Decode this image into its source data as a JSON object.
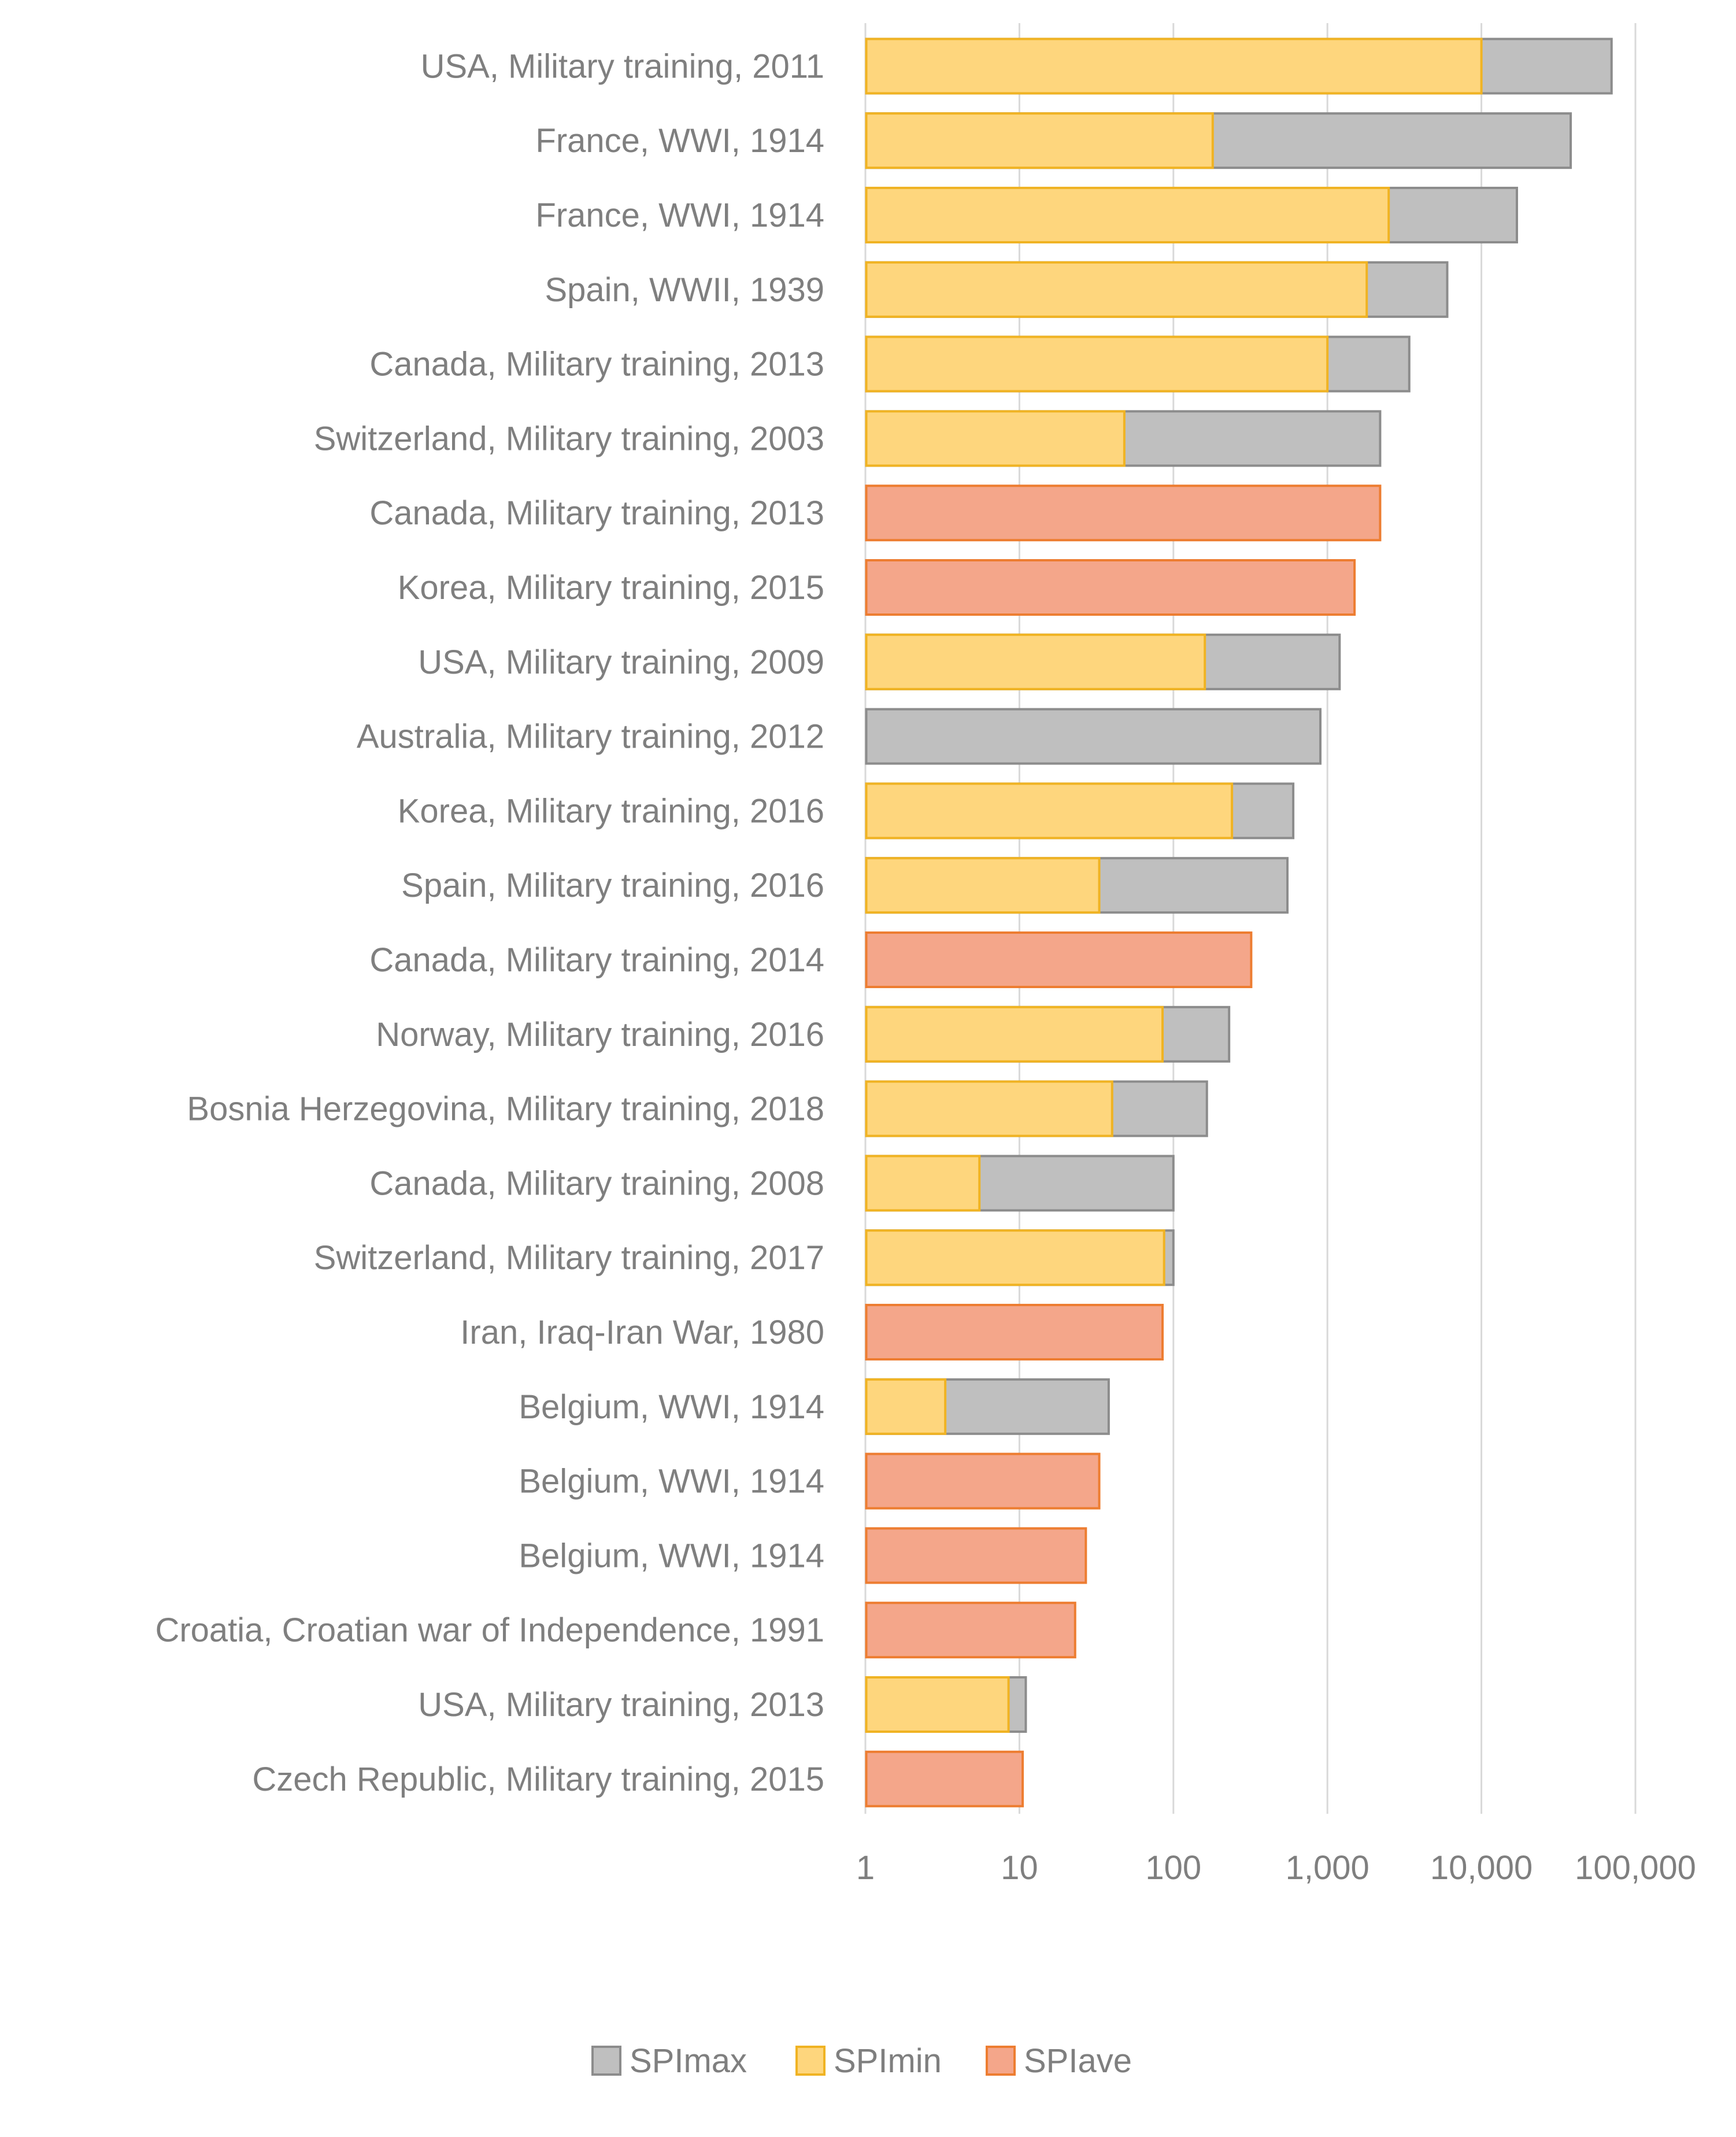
{
  "chart_data": {
    "type": "bar",
    "orientation": "horizontal",
    "scale": "log",
    "title": "",
    "xlabel": "",
    "ylabel": "",
    "xlim": [
      1,
      100000
    ],
    "grid": true,
    "legend_position": "bottom",
    "x_ticks": [
      1,
      10,
      100,
      1000,
      10000,
      100000
    ],
    "x_tick_labels": [
      "1",
      "10",
      "100",
      "1,000",
      "10,000",
      "100,000"
    ],
    "categories": [
      "USA, Military training, 2011",
      "France, WWI, 1914",
      "France, WWI, 1914",
      "Spain, WWII, 1939",
      "Canada, Military training, 2013",
      "Switzerland, Military training, 2003",
      "Canada, Military training, 2013",
      "Korea, Military training, 2015",
      "USA, Military training, 2009",
      "Australia, Military training, 2012",
      "Korea, Military training, 2016",
      "Spain, Military training, 2016",
      "Canada, Military training, 2014",
      "Norway, Military training, 2016",
      "Bosnia Herzegovina, Military training, 2018",
      "Canada, Military training, 2008",
      "Switzerland, Military training, 2017",
      "Iran, Iraq-Iran War, 1980",
      "Belgium, WWI, 1914",
      "Belgium, WWI, 1914",
      "Belgium, WWI, 1914",
      "Croatia, Croatian war of Independence, 1991",
      "USA, Military training, 2013",
      "Czech Republic, Military training, 2015"
    ],
    "series": [
      {
        "name": "SPImax",
        "color": "#bfbfbf",
        "stroke": "#8c8c8c",
        "values": [
          70000,
          38000,
          17000,
          6000,
          3400,
          2200,
          null,
          null,
          1200,
          900,
          600,
          550,
          null,
          230,
          165,
          100,
          100,
          null,
          38,
          null,
          null,
          null,
          11,
          null
        ]
      },
      {
        "name": "SPImin",
        "color": "#fed67d",
        "stroke": "#f0b323",
        "values": [
          10000,
          180,
          2500,
          1800,
          1000,
          48,
          null,
          null,
          160,
          null,
          240,
          33,
          null,
          85,
          40,
          5.5,
          87,
          null,
          3.3,
          null,
          null,
          null,
          8.5,
          null
        ]
      },
      {
        "name": "SPIave",
        "color": "#f4a68a",
        "stroke": "#ed7d31",
        "values": [
          null,
          null,
          null,
          null,
          null,
          null,
          2200,
          1500,
          null,
          null,
          null,
          null,
          320,
          null,
          null,
          null,
          null,
          85,
          null,
          33,
          27,
          23,
          null,
          10.5
        ]
      }
    ],
    "legend": [
      "SPImax",
      "SPImin",
      "SPIave"
    ]
  }
}
